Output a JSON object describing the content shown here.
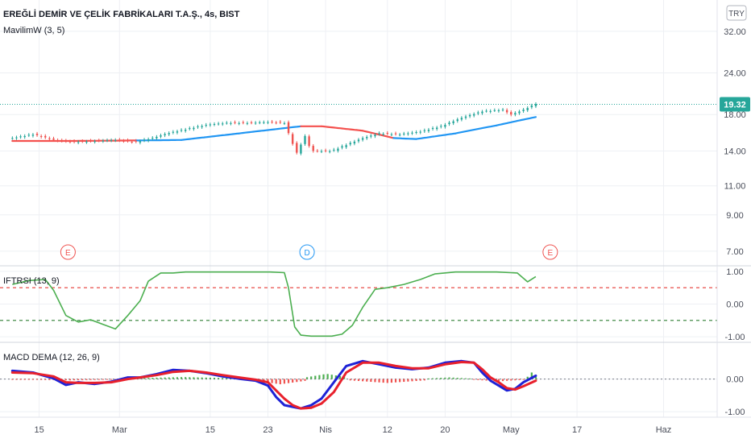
{
  "header": {
    "symbol_title": "EREĞLİ DEMİR VE ÇELİK FABRİKALARI T.A.Ş., 4s, BIST",
    "indicator_label": "MavilimW (3, 5)",
    "currency": "TRY"
  },
  "price_tag": "19.32",
  "colors": {
    "up": "#26a69a",
    "down": "#ef5350",
    "mavilim_up": "#2196f3",
    "mavilim_down": "#f4514e",
    "iftrsi": "#4caf50",
    "upper_level": "#e53935",
    "lower_level": "#2e7d32",
    "macd": "#1e22d6",
    "signal": "#e8202c",
    "hist_up": "#4caf50",
    "hist_down": "#ef5350",
    "grid": "#eef0f4"
  },
  "chart_data": [
    {
      "id": "price",
      "type": "candlestick",
      "title": "EREĞLİ DEMİR VE ÇELİK FABRİKALARI T.A.Ş., 4s, BIST",
      "scale": "log",
      "ylim": [
        6.4,
        38.0
      ],
      "yticks": [
        "32.00",
        "24.00",
        "18.00",
        "14.00",
        "11.00",
        "9.00",
        "7.00"
      ],
      "ytick_values": [
        32,
        24,
        18,
        14,
        11,
        9,
        7
      ],
      "last_price": 19.32,
      "close_series": [
        {
          "t": 0,
          "v": 15.3
        },
        {
          "t": 10,
          "v": 15.7
        },
        {
          "t": 20,
          "v": 15.1
        },
        {
          "t": 30,
          "v": 14.9
        },
        {
          "t": 40,
          "v": 15.0
        },
        {
          "t": 50,
          "v": 15.1
        },
        {
          "t": 60,
          "v": 14.9
        },
        {
          "t": 68,
          "v": 15.3
        },
        {
          "t": 75,
          "v": 15.8
        },
        {
          "t": 85,
          "v": 16.3
        },
        {
          "t": 95,
          "v": 16.8
        },
        {
          "t": 105,
          "v": 17.0
        },
        {
          "t": 115,
          "v": 17.0
        },
        {
          "t": 125,
          "v": 17.1
        },
        {
          "t": 132,
          "v": 17.0
        },
        {
          "t": 135,
          "v": 15.2
        },
        {
          "t": 138,
          "v": 13.8
        },
        {
          "t": 142,
          "v": 15.5
        },
        {
          "t": 145,
          "v": 14.0
        },
        {
          "t": 155,
          "v": 14.0
        },
        {
          "t": 162,
          "v": 14.6
        },
        {
          "t": 170,
          "v": 15.3
        },
        {
          "t": 178,
          "v": 15.8
        },
        {
          "t": 188,
          "v": 15.7
        },
        {
          "t": 198,
          "v": 16.0
        },
        {
          "t": 208,
          "v": 16.6
        },
        {
          "t": 218,
          "v": 17.6
        },
        {
          "t": 228,
          "v": 18.4
        },
        {
          "t": 238,
          "v": 18.6
        },
        {
          "t": 242,
          "v": 18.0
        },
        {
          "t": 248,
          "v": 18.6
        },
        {
          "t": 254,
          "v": 19.4
        }
      ],
      "mavilim": [
        {
          "t": 0,
          "v": 15.0,
          "dir": "down"
        },
        {
          "t": 30,
          "v": 15.0,
          "dir": "down"
        },
        {
          "t": 60,
          "v": 15.05,
          "dir": "down"
        },
        {
          "t": 82,
          "v": 15.1,
          "dir": "up"
        },
        {
          "t": 110,
          "v": 15.8,
          "dir": "up"
        },
        {
          "t": 140,
          "v": 16.6,
          "dir": "up"
        },
        {
          "t": 150,
          "v": 16.6,
          "dir": "down"
        },
        {
          "t": 170,
          "v": 16.1,
          "dir": "down"
        },
        {
          "t": 185,
          "v": 15.3,
          "dir": "down"
        },
        {
          "t": 196,
          "v": 15.2,
          "dir": "up"
        },
        {
          "t": 215,
          "v": 15.8,
          "dir": "up"
        },
        {
          "t": 235,
          "v": 16.7,
          "dir": "up"
        },
        {
          "t": 254,
          "v": 17.7,
          "dir": "up"
        }
      ],
      "event_markers": [
        {
          "t": 27,
          "label": "E"
        },
        {
          "t": 143,
          "label": "D"
        },
        {
          "t": 261,
          "label": "E"
        }
      ]
    },
    {
      "id": "iftrsi",
      "type": "line",
      "title": "IFTRSI (13, 9)",
      "ylim": [
        -1.12,
        1.12
      ],
      "yticks": [
        "1.00",
        "0.00",
        "-1.00"
      ],
      "ytick_values": [
        1,
        0,
        -1
      ],
      "levels": [
        0.5,
        -0.5
      ],
      "x": [
        0,
        8,
        16,
        20,
        26,
        32,
        38,
        44,
        50,
        56,
        62,
        66,
        72,
        78,
        84,
        90,
        96,
        110,
        125,
        132,
        134,
        137,
        140,
        145,
        150,
        155,
        160,
        165,
        170,
        176,
        182,
        190,
        198,
        205,
        215,
        225,
        235,
        245,
        250,
        254
      ],
      "values": [
        0.6,
        0.72,
        0.75,
        0.42,
        -0.35,
        -0.55,
        -0.48,
        -0.62,
        -0.76,
        -0.35,
        0.1,
        0.7,
        0.95,
        0.95,
        0.98,
        0.98,
        0.98,
        0.98,
        0.98,
        0.96,
        0.5,
        -0.7,
        -0.95,
        -0.98,
        -0.98,
        -0.98,
        -0.92,
        -0.65,
        -0.1,
        0.45,
        0.5,
        0.6,
        0.75,
        0.92,
        0.98,
        0.98,
        0.98,
        0.95,
        0.68,
        0.84
      ]
    },
    {
      "id": "macd",
      "type": "line",
      "title": "MACD DEMA (12, 26, 9)",
      "ylim": [
        -1.12,
        1.05
      ],
      "yticks": [
        "0.00",
        "-1.00"
      ],
      "ytick_values": [
        0,
        -1
      ],
      "series": [
        {
          "name": "MACD",
          "x": [
            0,
            10,
            20,
            26,
            32,
            40,
            48,
            56,
            62,
            70,
            78,
            86,
            94,
            102,
            110,
            118,
            124,
            128,
            132,
            136,
            140,
            145,
            150,
            156,
            162,
            170,
            178,
            186,
            194,
            202,
            210,
            218,
            224,
            228,
            232,
            236,
            240,
            244,
            248,
            254
          ],
          "values": [
            0.25,
            0.2,
            0.02,
            -0.18,
            -0.1,
            -0.15,
            -0.08,
            0.05,
            0.05,
            0.15,
            0.28,
            0.25,
            0.18,
            0.08,
            0.01,
            -0.05,
            -0.2,
            -0.55,
            -0.8,
            -0.85,
            -0.9,
            -0.8,
            -0.6,
            -0.1,
            0.4,
            0.55,
            0.45,
            0.35,
            0.3,
            0.35,
            0.5,
            0.55,
            0.5,
            0.2,
            -0.05,
            -0.2,
            -0.35,
            -0.3,
            -0.1,
            0.1
          ]
        },
        {
          "name": "Signal",
          "x": [
            0,
            10,
            20,
            26,
            32,
            40,
            48,
            56,
            62,
            70,
            78,
            86,
            94,
            102,
            110,
            118,
            124,
            128,
            132,
            136,
            140,
            145,
            150,
            156,
            162,
            170,
            178,
            186,
            194,
            202,
            210,
            218,
            224,
            228,
            232,
            236,
            240,
            244,
            248,
            254
          ],
          "values": [
            0.2,
            0.18,
            0.08,
            -0.1,
            -0.12,
            -0.12,
            -0.1,
            0.0,
            0.05,
            0.12,
            0.22,
            0.25,
            0.2,
            0.12,
            0.05,
            -0.02,
            -0.1,
            -0.35,
            -0.6,
            -0.8,
            -0.9,
            -0.88,
            -0.75,
            -0.4,
            0.2,
            0.5,
            0.5,
            0.4,
            0.33,
            0.33,
            0.45,
            0.52,
            0.5,
            0.3,
            0.05,
            -0.1,
            -0.28,
            -0.32,
            -0.22,
            -0.05
          ]
        }
      ],
      "histogram": [
        {
          "from": 0,
          "to": 55,
          "value": -0.04
        },
        {
          "from": 56,
          "to": 110,
          "value": 0.06
        },
        {
          "from": 118,
          "to": 142,
          "value": -0.16
        },
        {
          "from": 143,
          "to": 162,
          "value": 0.16
        },
        {
          "from": 164,
          "to": 200,
          "value": -0.12
        },
        {
          "from": 202,
          "to": 222,
          "value": 0.05
        },
        {
          "from": 224,
          "to": 248,
          "value": -0.07
        },
        {
          "from": 250,
          "to": 254,
          "value": 0.2
        }
      ]
    }
  ],
  "time_axis": {
    "range": [
      -6,
      342
    ],
    "ticks": [
      {
        "t": 13,
        "label": "15"
      },
      {
        "t": 52,
        "label": "Mar"
      },
      {
        "t": 96,
        "label": "15"
      },
      {
        "t": 124,
        "label": "23"
      },
      {
        "t": 152,
        "label": "Nis"
      },
      {
        "t": 182,
        "label": "12"
      },
      {
        "t": 210,
        "label": "20"
      },
      {
        "t": 242,
        "label": "May"
      },
      {
        "t": 274,
        "label": "17"
      },
      {
        "t": 316,
        "label": "Haz"
      }
    ]
  }
}
